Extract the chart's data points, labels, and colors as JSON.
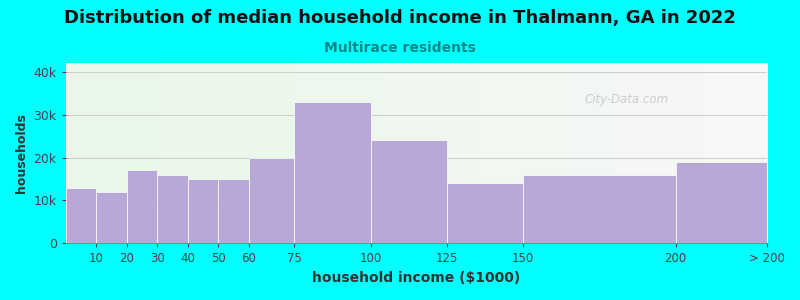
{
  "title": "Distribution of median household income in Thalmann, GA in 2022",
  "subtitle": "Multirace residents",
  "xlabel": "household income ($1000)",
  "ylabel": "households",
  "background_color": "#00FFFF",
  "bar_color": "#b8a8d8",
  "bar_edgecolor": "#ffffff",
  "bin_edges": [
    0,
    10,
    20,
    30,
    40,
    50,
    60,
    75,
    100,
    125,
    150,
    200,
    230
  ],
  "bin_labels": [
    "10",
    "20",
    "30",
    "40",
    "50",
    "60",
    "75",
    "100",
    "125",
    "150",
    "200",
    "> 200"
  ],
  "values": [
    13000,
    12000,
    17000,
    16000,
    15000,
    15000,
    20000,
    33000,
    24000,
    14000,
    16000,
    19000
  ],
  "ylim": [
    0,
    42000
  ],
  "yticks": [
    0,
    10000,
    20000,
    30000,
    40000
  ],
  "ytick_labels": [
    "0",
    "10k",
    "20k",
    "30k",
    "40k"
  ],
  "title_fontsize": 13,
  "subtitle_fontsize": 10,
  "xlabel_fontsize": 10,
  "ylabel_fontsize": 9,
  "watermark_text": "City-Data.com"
}
